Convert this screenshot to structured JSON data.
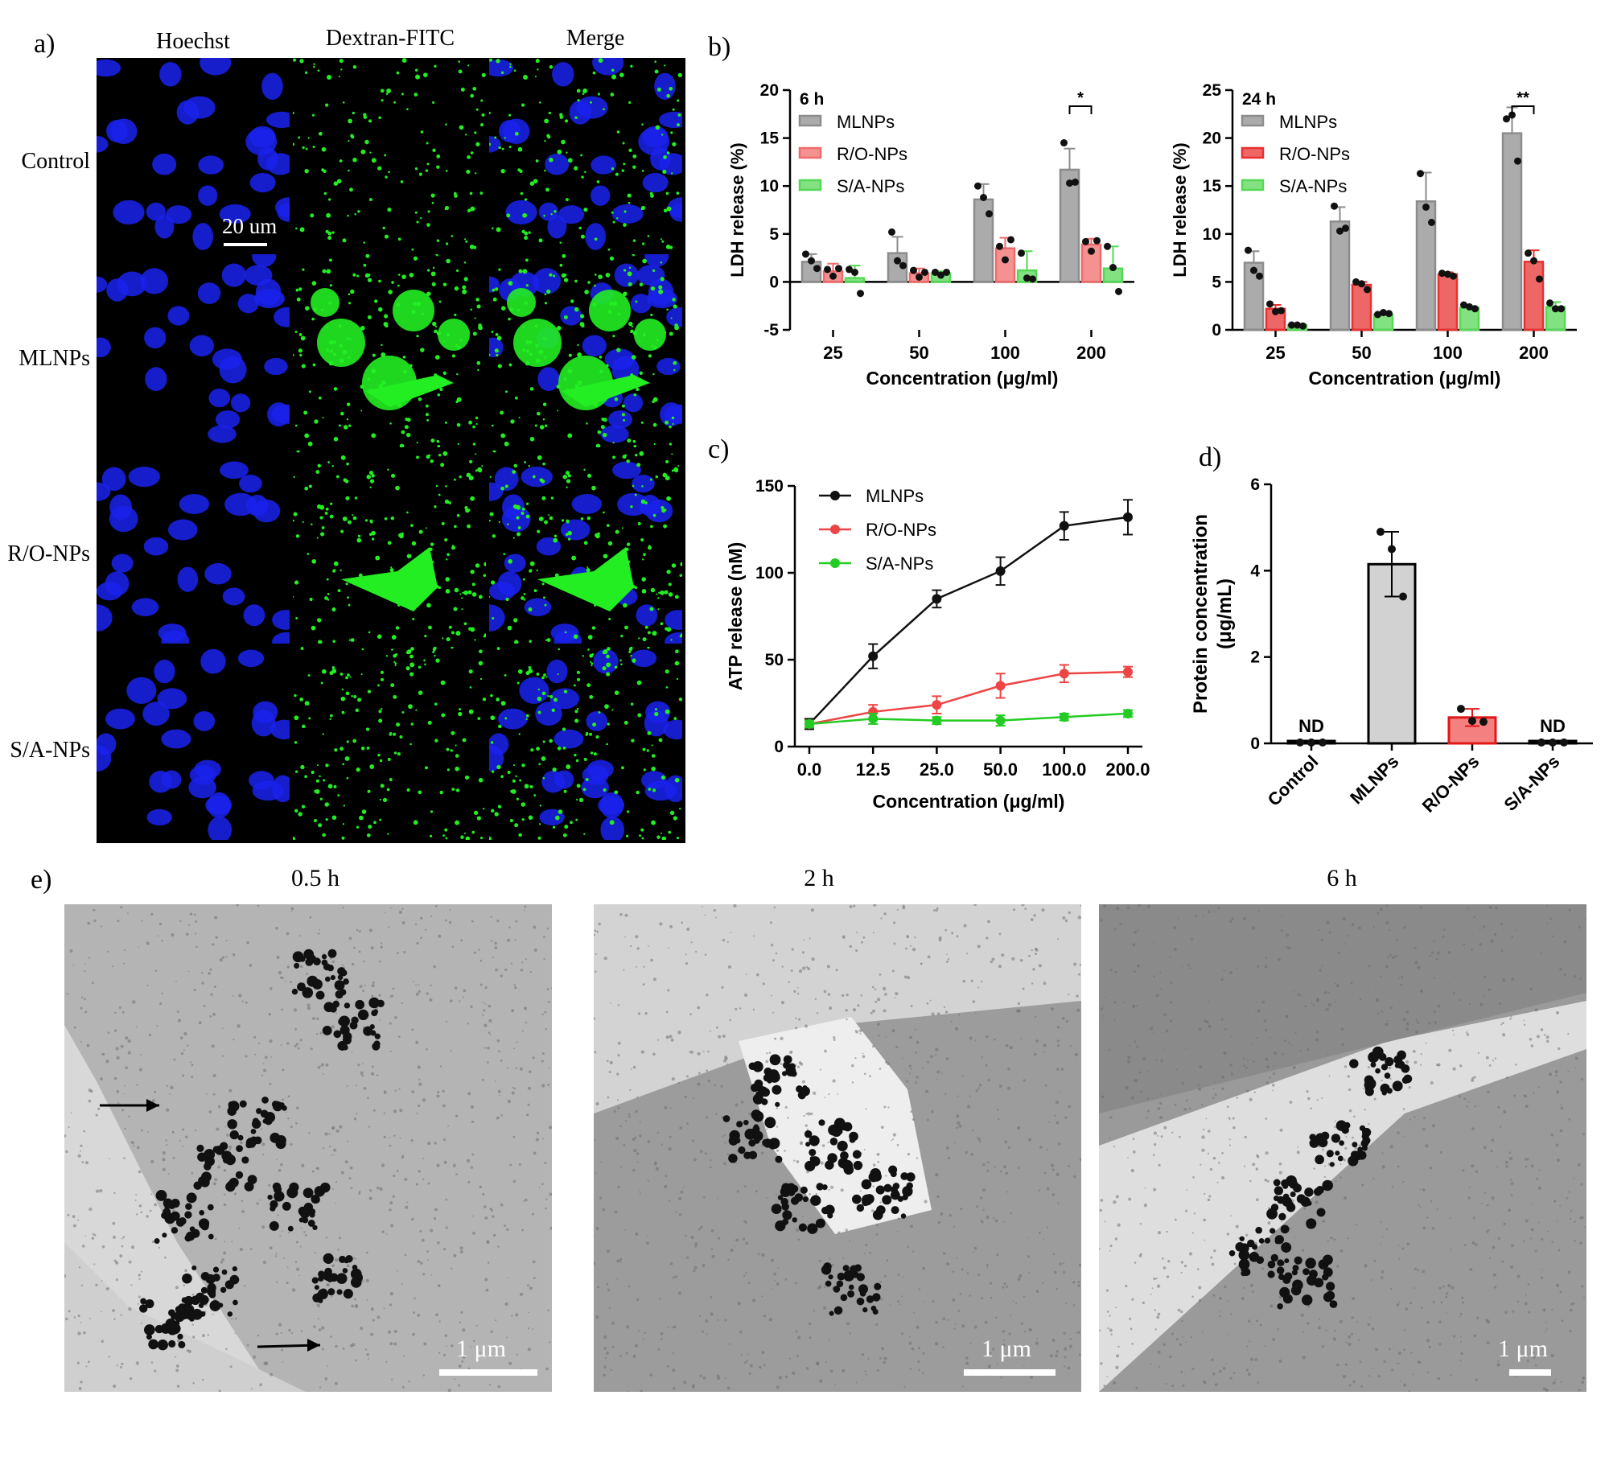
{
  "panel_a": {
    "letter": "a)",
    "columns": [
      "Hoechst",
      "Dextran-FITC",
      "Merge"
    ],
    "rows": [
      "Control",
      "MLNPs",
      "R/O-NPs",
      "S/A-NPs"
    ],
    "scale_bar": "20 um",
    "colors": {
      "nuclei": "#1a22ee",
      "dextran": "#22ee22"
    }
  },
  "panel_b": {
    "letter": "b)",
    "six_h": {
      "tag": "6 h",
      "ylabel": "LDH release (%)",
      "xlabel": "Concentration (μg/ml)",
      "sig_label": "*",
      "legend": [
        "MLNPs",
        "R/O-NPs",
        "S/A-NPs"
      ]
    },
    "twentyfour_h": {
      "tag": "24 h",
      "ylabel": "LDH release (%)",
      "xlabel": "Concentration (μg/ml)",
      "sig_label": "**",
      "legend": [
        "MLNPs",
        "R/O-NPs",
        "S/A-NPs"
      ]
    }
  },
  "panel_c": {
    "letter": "c)",
    "ylabel": "ATP release (nM)",
    "xlabel": "Concentration (μg/ml)",
    "legend": [
      "MLNPs",
      "R/O-NPs",
      "S/A-NPs"
    ]
  },
  "panel_d": {
    "letter": "d)",
    "ylabel_line1": "Protein concentration",
    "ylabel_line2": "(μg/mL)",
    "nd_label": "ND"
  },
  "panel_e": {
    "letter": "e)",
    "times": [
      "0.5 h",
      "2 h",
      "6 h"
    ],
    "scale_bar": "1 μm"
  },
  "chart_data": [
    {
      "type": "bar",
      "id": "ldh_6h",
      "title": "6 h",
      "categories": [
        "25",
        "50",
        "100",
        "200"
      ],
      "xlabel": "Concentration (μg/ml)",
      "ylabel": "LDH release (%)",
      "ylim": [
        -5,
        20
      ],
      "yticks": [
        -5,
        0,
        5,
        10,
        15,
        20
      ],
      "series": [
        {
          "name": "MLNPs",
          "color": "#8c8c8c",
          "values": [
            2.1,
            3.0,
            8.6,
            11.7
          ],
          "errors": [
            0.8,
            1.7,
            1.6,
            2.2
          ],
          "points": [
            [
              2.9,
              2.2,
              1.4
            ],
            [
              5.2,
              2.2,
              1.7
            ],
            [
              10.0,
              8.8,
              7.1
            ],
            [
              14.5,
              10.3,
              10.4
            ]
          ]
        },
        {
          "name": "R/O-NPs",
          "color": "#f06a6a",
          "values": [
            1.1,
            0.9,
            3.5,
            3.9
          ],
          "errors": [
            0.8,
            0.5,
            1.1,
            0.6
          ],
          "points": [
            [
              1.3,
              0.6,
              1.4
            ],
            [
              1.2,
              0.5,
              1.0
            ],
            [
              3.7,
              2.3,
              4.4
            ],
            [
              4.2,
              3.2,
              4.3
            ]
          ]
        },
        {
          "name": "S/A-NPs",
          "color": "#55d855",
          "values": [
            0.4,
            0.9,
            1.2,
            1.4
          ],
          "errors": [
            1.3,
            0.2,
            2.0,
            2.3
          ],
          "points": [
            [
              1.3,
              1.0,
              -1.2
            ],
            [
              1.0,
              0.7,
              1.0
            ],
            [
              3.0,
              0.4,
              0.3
            ],
            [
              3.7,
              1.5,
              -1.0
            ]
          ]
        }
      ],
      "significance": {
        "category": "200",
        "between": [
          "MLNPs",
          "R/O-NPs"
        ],
        "label": "*"
      }
    },
    {
      "type": "bar",
      "id": "ldh_24h",
      "title": "24 h",
      "categories": [
        "25",
        "50",
        "100",
        "200"
      ],
      "xlabel": "Concentration (μg/ml)",
      "ylabel": "LDH release (%)",
      "ylim": [
        0,
        25
      ],
      "yticks": [
        0,
        5,
        10,
        15,
        20,
        25
      ],
      "series": [
        {
          "name": "MLNPs",
          "color": "#8c8c8c",
          "values": [
            7.0,
            11.3,
            13.4,
            20.5
          ],
          "errors": [
            1.2,
            1.5,
            3.0,
            2.7
          ],
          "points": [
            [
              8.3,
              6.2,
              5.6
            ],
            [
              12.9,
              10.3,
              10.6
            ],
            [
              16.3,
              12.8,
              11.2
            ],
            [
              22.0,
              22.4,
              17.6
            ]
          ]
        },
        {
          "name": "R/O-NPs",
          "color": "#e83030",
          "values": [
            2.2,
            4.7,
            5.8,
            7.1
          ],
          "errors": [
            0.4,
            0.3,
            0.2,
            1.2
          ],
          "points": [
            [
              2.7,
              1.9,
              2.0
            ],
            [
              5.0,
              4.8,
              4.2
            ],
            [
              5.9,
              5.8,
              5.6
            ],
            [
              8.0,
              7.2,
              5.3
            ]
          ]
        },
        {
          "name": "S/A-NPs",
          "color": "#55d855",
          "values": [
            0.5,
            1.6,
            2.3,
            2.4
          ],
          "errors": [
            0.1,
            0.2,
            0.2,
            0.5
          ],
          "points": [
            [
              0.5,
              0.5,
              0.4
            ],
            [
              1.6,
              1.8,
              1.7
            ],
            [
              2.6,
              2.4,
              2.2
            ],
            [
              2.8,
              2.2,
              2.2
            ]
          ]
        }
      ],
      "significance": {
        "category": "200",
        "between": [
          "MLNPs",
          "R/O-NPs"
        ],
        "label": "**"
      }
    },
    {
      "type": "line",
      "id": "atp",
      "categories": [
        "0.0",
        "12.5",
        "25.0",
        "50.0",
        "100.0",
        "200.0"
      ],
      "xlabel": "Concentration (μg/ml)",
      "ylabel": "ATP release (nM)",
      "ylim": [
        0,
        150
      ],
      "yticks": [
        0,
        50,
        100,
        150
      ],
      "series": [
        {
          "name": "MLNPs",
          "color": "#111111",
          "values": [
            13,
            52,
            85,
            101,
            127,
            132
          ],
          "errors": [
            3,
            7,
            5,
            8,
            8,
            10
          ]
        },
        {
          "name": "R/O-NPs",
          "color": "#ee4444",
          "values": [
            13,
            20,
            24,
            35,
            42,
            43
          ],
          "errors": [
            2,
            4,
            5,
            7,
            5,
            3
          ]
        },
        {
          "name": "S/A-NPs",
          "color": "#22cc22",
          "values": [
            13,
            16,
            15,
            15,
            17,
            19
          ],
          "errors": [
            2,
            3,
            2,
            3,
            2,
            2
          ]
        }
      ]
    },
    {
      "type": "bar",
      "id": "protein",
      "categories": [
        "Control",
        "MLNPs",
        "R/O-NPs",
        "S/A-NPs"
      ],
      "xlabel": "",
      "ylabel": "Protein concentration (μg/mL)",
      "ylim": [
        0,
        6
      ],
      "yticks": [
        0,
        2,
        4,
        6
      ],
      "values": [
        0,
        4.15,
        0.6,
        0
      ],
      "errors": [
        0,
        0.75,
        0.2,
        0
      ],
      "colors": [
        "#ffffff",
        "#d2d2d2",
        "#f48080",
        "#ffffff"
      ],
      "edge_colors": [
        "#000000",
        "#000000",
        "#e01818",
        "#000000"
      ],
      "points": [
        [
          0.02,
          0.02,
          0.02
        ],
        [
          4.9,
          4.5,
          3.4
        ],
        [
          0.8,
          0.52,
          0.5
        ],
        [
          0.02,
          0.02,
          0.02
        ]
      ],
      "annotations": [
        {
          "category": "Control",
          "label": "ND"
        },
        {
          "category": "S/A-NPs",
          "label": "ND"
        }
      ]
    }
  ]
}
